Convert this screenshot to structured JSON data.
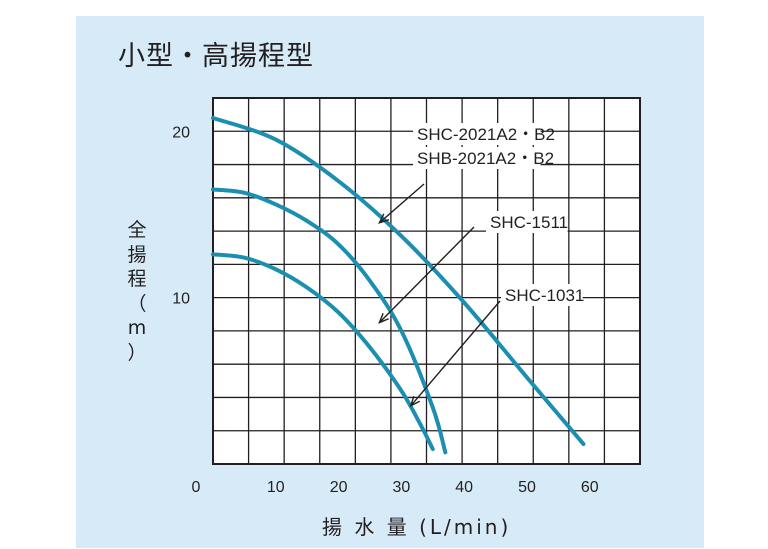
{
  "chart_data": {
    "type": "line",
    "title": "小型・高揚程型",
    "xlabel": "揚 水 量 (L/min)",
    "ylabel": [
      "全",
      "揚",
      "程",
      "（",
      "m",
      "）"
    ],
    "xlim": [
      0,
      68
    ],
    "ylim": [
      0,
      22
    ],
    "x_ticks": [
      "0",
      "10",
      "20",
      "30",
      "40",
      "50",
      "60"
    ],
    "y_ticks": [
      "10",
      "20"
    ],
    "grid": true,
    "colors": {
      "curve": "#1c8fb0",
      "grid": "#231f20",
      "panel": "#d6ebf7",
      "plot_bg": "#ffffff"
    },
    "series": [
      {
        "x": [
          0,
          10,
          20,
          30,
          40,
          50,
          59
        ],
        "y": [
          20.8,
          19.5,
          17.0,
          13.7,
          9.7,
          5.2,
          1.2
        ]
      },
      {
        "x": [
          0,
          5,
          10,
          15,
          20,
          25,
          30,
          35,
          37
        ],
        "y": [
          16.5,
          16.3,
          15.6,
          14.6,
          13.2,
          11.0,
          8.0,
          3.4,
          0.7
        ]
      },
      {
        "x": [
          0,
          5,
          10,
          15,
          20,
          25,
          30,
          33,
          35
        ],
        "y": [
          12.6,
          12.4,
          11.7,
          10.6,
          9.1,
          7.0,
          4.4,
          2.4,
          0.9
        ]
      }
    ],
    "annotations": [
      {
        "lines": [
          "SHC-2021A2・B2",
          "SHB-2021A2・B2"
        ],
        "points_to": {
          "x": 26.5,
          "y": 14.5
        }
      },
      {
        "lines": [
          "SHC-1511"
        ],
        "points_to": {
          "x": 26.5,
          "y": 8.5
        }
      },
      {
        "lines": [
          "SHC-1031"
        ],
        "points_to": {
          "x": 31.5,
          "y": 3.5
        }
      }
    ]
  }
}
